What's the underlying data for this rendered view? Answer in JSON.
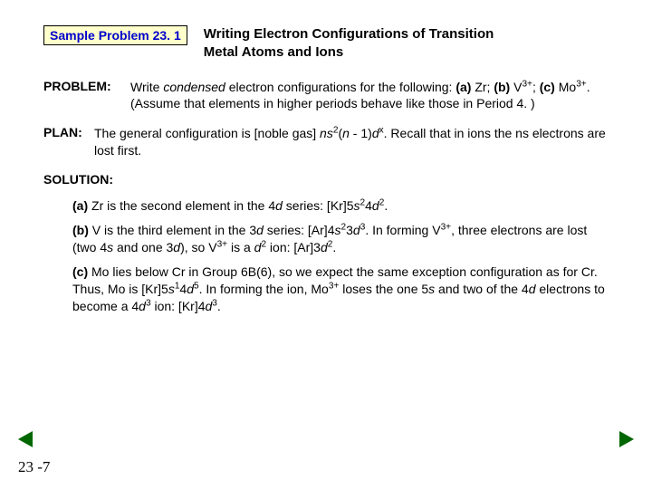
{
  "header": {
    "sample_label": "Sample Problem 23. 1",
    "title_line1": "Writing Electron Configurations of Transition",
    "title_line2": "Metal Atoms and Ions"
  },
  "problem": {
    "label": "PROBLEM:",
    "text_pre": "Write ",
    "text_condensed": "condensed",
    "text_mid1": " electron configurations for the following:  ",
    "tag_a": "(a)",
    "text_a": " Zr; ",
    "tag_b": "(b)",
    "text_b_pre": " V",
    "text_b_sup": "3+",
    "text_b_post": "; ",
    "tag_c": "(c)",
    "text_c_pre": " Mo",
    "text_c_sup": "3+",
    "text_c_post": ".  (Assume that elements in higher periods behave like those in Period 4. )"
  },
  "plan": {
    "label": "PLAN:",
    "t1": "The general configuration is [noble gas] ",
    "ns": "ns",
    "sup2": "2",
    "t2": "(",
    "n_ital": "n",
    "t3": " - 1)",
    "d_ital": "d",
    "supx": "x",
    "t4": ".  Recall that in ions the ns electrons are lost first."
  },
  "solution": {
    "label": "SOLUTION:",
    "a": {
      "tag": "(a)",
      "t1": "  Zr is the second element in the 4",
      "d": "d",
      "t2": " series: [Kr]5",
      "s": "s",
      "sup1": "2",
      "t3": "4",
      "d2": "d",
      "sup2": "2",
      "t4": "."
    },
    "b": {
      "tag": "(b)",
      "t1": "  V is the third element in the 3",
      "d": "d",
      "t2": " series: [Ar]4",
      "s": "s",
      "sup1": "2",
      "t3": "3",
      "d2": "d",
      "sup2": "3",
      "t4": ".  In forming V",
      "sup3": "3+",
      "t5": ", three electrons are lost (two 4",
      "s2": "s",
      "t6": " and one 3",
      "d3": "d",
      "t7": "), so V",
      "sup4": "3+",
      "t8": " is a ",
      "d4": "d",
      "sup5": "2",
      "t9": " ion: [Ar]3",
      "d5": "d",
      "sup6": "2",
      "t10": "."
    },
    "c": {
      "tag": "(c)",
      "t1": "  Mo lies below Cr in Group 6B(6), so we expect the same exception configuration as for Cr.  Thus, Mo is [Kr]5",
      "s": "s",
      "sup1": "1",
      "t2": "4",
      "d": "d",
      "sup2": "5",
      "t3": ".  In forming the ion, Mo",
      "sup3": "3+",
      "t4": " loses the one 5",
      "s2": "s",
      "t5": " and two of the 4",
      "d2": "d",
      "t6": " electrons to become a 4",
      "d3": "d",
      "sup4": "3",
      "t7": " ion: [Kr]4",
      "d4": "d",
      "sup5": "3",
      "t8": "."
    }
  },
  "footer": {
    "page": "23 -7"
  },
  "colors": {
    "sample_bg": "#ffffcc",
    "sample_text": "#0000cc",
    "arrow": "#006600",
    "text": "#000000"
  }
}
